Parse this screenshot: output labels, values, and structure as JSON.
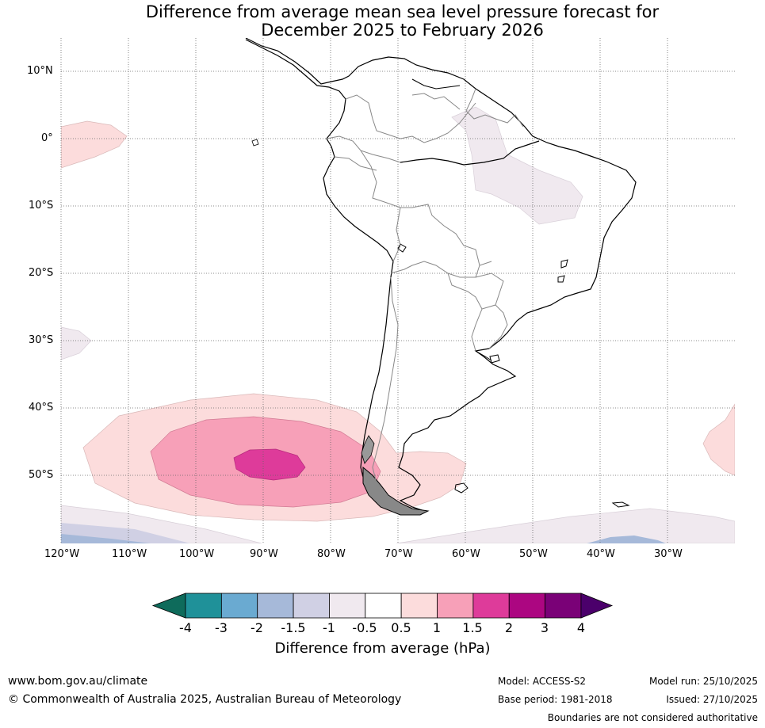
{
  "title": {
    "line1": "Difference from average mean sea level pressure forecast for",
    "line2": "December 2025 to February 2026"
  },
  "map": {
    "lat_labels": [
      "10°N",
      "0°",
      "10°S",
      "20°S",
      "30°S",
      "40°S",
      "50°S"
    ],
    "lon_labels": [
      "120°W",
      "110°W",
      "100°W",
      "90°W",
      "80°W",
      "70°W",
      "60°W",
      "50°W",
      "40°W",
      "30°W"
    ]
  },
  "colorbar": {
    "tick_labels": [
      "-4",
      "-3",
      "-2",
      "-1.5",
      "-1",
      "-0.5",
      "0.5",
      "1",
      "1.5",
      "2",
      "3",
      "4"
    ],
    "colors": [
      "#0e6b5b",
      "#1f9199",
      "#6aaad1",
      "#a6b9d9",
      "#d0d0e4",
      "#f0e9ef",
      "#ffffff",
      "#fcdcdc",
      "#f7a0b8",
      "#de3b9a",
      "#ac0681",
      "#7a0177",
      "#4b006b"
    ],
    "title": "Difference from average (hPa)"
  },
  "footer": {
    "website": "www.bom.gov.au/climate",
    "copyright": "© Commonwealth of Australia 2025, Australian Bureau of Meteorology",
    "model": "Model: ACCESS-S2",
    "base_period": "Base period: 1981-2018",
    "model_run": "Model run: 25/10/2025",
    "issued": "Issued: 27/10/2025",
    "disclaimer": "Boundaries are not considered authoritative"
  }
}
